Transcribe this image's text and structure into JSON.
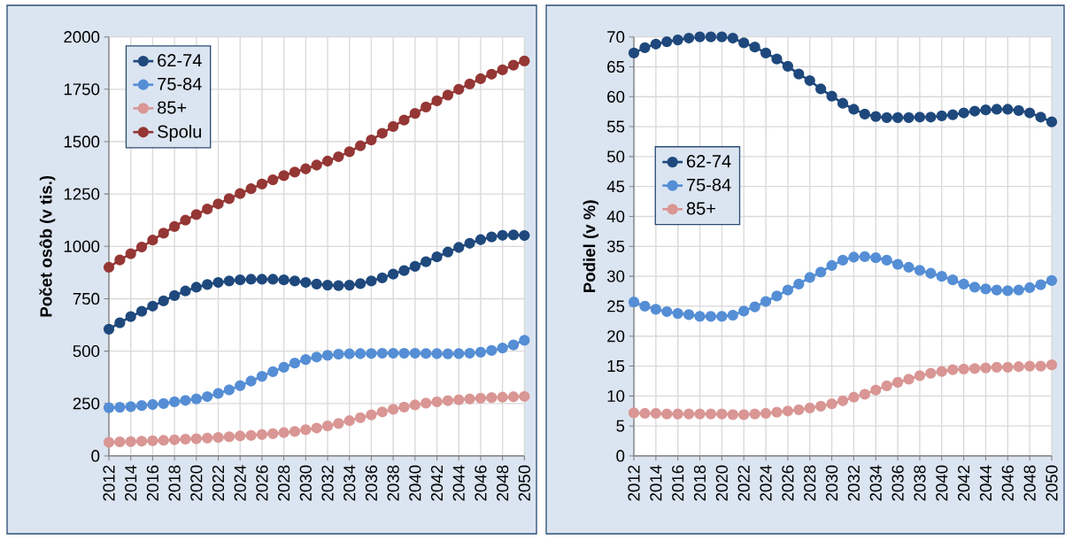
{
  "chart_data": [
    {
      "type": "line",
      "ylabel": "Počet osôb (v tis.)",
      "x": [
        2012,
        2013,
        2014,
        2015,
        2016,
        2017,
        2018,
        2019,
        2020,
        2021,
        2022,
        2023,
        2024,
        2025,
        2026,
        2027,
        2028,
        2029,
        2030,
        2031,
        2032,
        2033,
        2034,
        2035,
        2036,
        2037,
        2038,
        2039,
        2040,
        2041,
        2042,
        2043,
        2044,
        2045,
        2046,
        2047,
        2048,
        2049,
        2050
      ],
      "xlim": [
        2012,
        2050
      ],
      "xticks": [
        2012,
        2014,
        2016,
        2018,
        2020,
        2022,
        2024,
        2026,
        2028,
        2030,
        2032,
        2034,
        2036,
        2038,
        2040,
        2042,
        2044,
        2046,
        2048,
        2050
      ],
      "ylim": [
        0,
        2000
      ],
      "yticks": [
        0,
        250,
        500,
        750,
        1000,
        1250,
        1500,
        1750,
        2000
      ],
      "grid": true,
      "legend": "top left",
      "marker": "circle",
      "line_style": "solid",
      "series": [
        {
          "name": "62-74",
          "color": "#1f497d",
          "values": [
            605,
            635,
            665,
            690,
            715,
            740,
            765,
            787,
            805,
            818,
            828,
            835,
            840,
            843,
            843,
            843,
            840,
            835,
            828,
            820,
            815,
            813,
            815,
            822,
            835,
            850,
            868,
            885,
            905,
            927,
            950,
            973,
            995,
            1015,
            1032,
            1045,
            1053,
            1055,
            1052
          ]
        },
        {
          "name": "75-84",
          "color": "#558ed5",
          "values": [
            230,
            232,
            235,
            240,
            245,
            250,
            258,
            265,
            272,
            283,
            298,
            315,
            335,
            357,
            380,
            402,
            423,
            443,
            460,
            472,
            480,
            485,
            487,
            488,
            489,
            490,
            490,
            490,
            490,
            489,
            488,
            487,
            488,
            490,
            495,
            503,
            515,
            530,
            552
          ]
        },
        {
          "name": "85+",
          "color": "#d99694",
          "values": [
            65,
            67,
            68,
            70,
            72,
            74,
            77,
            80,
            82,
            85,
            88,
            91,
            95,
            98,
            102,
            106,
            111,
            117,
            125,
            133,
            143,
            155,
            168,
            182,
            196,
            210,
            222,
            233,
            243,
            252,
            258,
            264,
            268,
            272,
            275,
            278,
            280,
            282,
            284
          ]
        },
        {
          "name": "Spolu",
          "color": "#953735",
          "values": [
            900,
            935,
            965,
            997,
            1030,
            1063,
            1095,
            1125,
            1152,
            1178,
            1203,
            1228,
            1252,
            1275,
            1298,
            1318,
            1338,
            1355,
            1370,
            1388,
            1407,
            1428,
            1452,
            1480,
            1508,
            1540,
            1572,
            1603,
            1635,
            1665,
            1695,
            1722,
            1750,
            1775,
            1800,
            1822,
            1843,
            1865,
            1885
          ]
        }
      ]
    },
    {
      "type": "line",
      "ylabel": "Podiel (v %)",
      "x": [
        2012,
        2013,
        2014,
        2015,
        2016,
        2017,
        2018,
        2019,
        2020,
        2021,
        2022,
        2023,
        2024,
        2025,
        2026,
        2027,
        2028,
        2029,
        2030,
        2031,
        2032,
        2033,
        2034,
        2035,
        2036,
        2037,
        2038,
        2039,
        2040,
        2041,
        2042,
        2043,
        2044,
        2045,
        2046,
        2047,
        2048,
        2049,
        2050
      ],
      "xlim": [
        2012,
        2050
      ],
      "xticks": [
        2012,
        2014,
        2016,
        2018,
        2020,
        2022,
        2024,
        2026,
        2028,
        2030,
        2032,
        2034,
        2036,
        2038,
        2040,
        2042,
        2044,
        2046,
        2048,
        2050
      ],
      "ylim": [
        0,
        70
      ],
      "yticks": [
        0,
        5,
        10,
        15,
        20,
        25,
        30,
        35,
        40,
        45,
        50,
        55,
        60,
        65,
        70
      ],
      "grid": true,
      "legend": "left",
      "marker": "circle",
      "line_style": "solid",
      "series": [
        {
          "name": "62-74",
          "color": "#1f497d",
          "values": [
            67.3,
            68.2,
            68.8,
            69.2,
            69.5,
            69.8,
            70.0,
            70.0,
            70.0,
            69.8,
            69.0,
            68.3,
            67.3,
            66.3,
            65.1,
            63.8,
            62.7,
            61.3,
            60.1,
            58.9,
            57.9,
            57.1,
            56.7,
            56.5,
            56.5,
            56.5,
            56.6,
            56.6,
            56.8,
            57.0,
            57.3,
            57.6,
            57.8,
            57.9,
            57.9,
            57.7,
            57.3,
            56.6,
            55.8
          ]
        },
        {
          "name": "75-84",
          "color": "#558ed5",
          "values": [
            25.7,
            25.0,
            24.5,
            24.1,
            23.8,
            23.6,
            23.3,
            23.3,
            23.3,
            23.5,
            24.2,
            24.9,
            25.8,
            26.7,
            27.7,
            28.7,
            29.8,
            30.7,
            31.8,
            32.7,
            33.2,
            33.3,
            33.1,
            32.7,
            32.0,
            31.5,
            31.0,
            30.5,
            30.0,
            29.4,
            28.7,
            28.2,
            27.9,
            27.7,
            27.6,
            27.7,
            28.1,
            28.6,
            29.3
          ]
        },
        {
          "name": "85+",
          "color": "#d99694",
          "values": [
            7.2,
            7.1,
            7.1,
            7.0,
            7.0,
            7.0,
            7.0,
            7.0,
            7.0,
            6.9,
            6.9,
            7.0,
            7.1,
            7.3,
            7.5,
            7.7,
            8.0,
            8.3,
            8.7,
            9.2,
            9.8,
            10.3,
            11.0,
            11.7,
            12.3,
            12.8,
            13.4,
            13.8,
            14.1,
            14.4,
            14.5,
            14.6,
            14.7,
            14.8,
            14.8,
            14.9,
            15.0,
            15.0,
            15.2
          ]
        }
      ]
    }
  ]
}
